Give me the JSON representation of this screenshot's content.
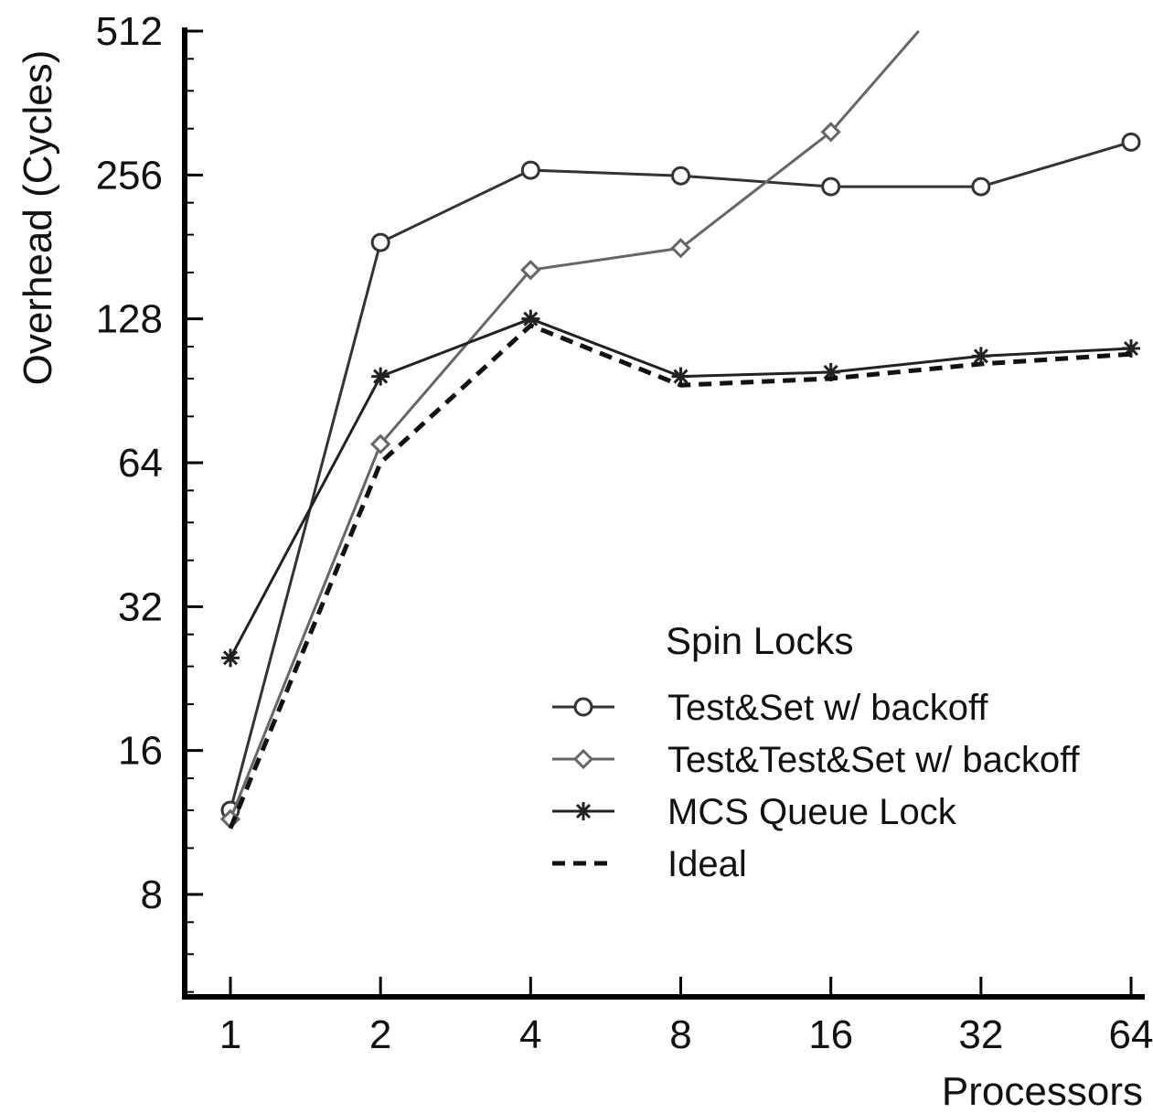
{
  "chart_data": {
    "type": "line",
    "title": "",
    "xlabel": "Processors",
    "ylabel": "Overhead (Cycles)",
    "x_scale": "log2",
    "y_scale": "log2",
    "ylim": [
      5,
      512
    ],
    "categories": [
      "1",
      "2",
      "4",
      "8",
      "16",
      "32",
      "64"
    ],
    "x": [
      1,
      2,
      4,
      8,
      16,
      32,
      64
    ],
    "yticks": [
      8,
      16,
      32,
      64,
      128,
      256,
      512
    ],
    "ytick_labels": [
      "8",
      "16",
      "32",
      "64",
      "128",
      "256",
      "512"
    ],
    "grid": false,
    "legend": {
      "title": "Spin Locks",
      "position": "center-right"
    },
    "series": [
      {
        "name": "Test&Set w/ backoff",
        "marker": "open-circle",
        "line": "solid",
        "color": "#333333",
        "x": [
          1,
          2,
          4,
          8,
          16,
          32,
          64
        ],
        "values": [
          12,
          185,
          262,
          255,
          242,
          242,
          300
        ]
      },
      {
        "name": "Test&Test&Set w/ backoff",
        "marker": "diamond",
        "line": "solid",
        "color": "#666666",
        "x": [
          1,
          2,
          4,
          8,
          16,
          24
        ],
        "values": [
          11.5,
          70,
          162,
          180,
          315,
          512
        ]
      },
      {
        "name": "MCS Queue Lock",
        "marker": "star",
        "line": "solid",
        "color": "#222222",
        "x": [
          1,
          2,
          4,
          8,
          16,
          32,
          64
        ],
        "values": [
          25,
          97,
          128,
          97,
          99,
          107,
          111
        ]
      },
      {
        "name": "Ideal",
        "marker": "none",
        "line": "dashed",
        "color": "#111111",
        "x": [
          1,
          2,
          4,
          8,
          16,
          32,
          64
        ],
        "values": [
          11,
          64,
          124,
          93,
          96,
          103,
          108
        ]
      }
    ]
  }
}
